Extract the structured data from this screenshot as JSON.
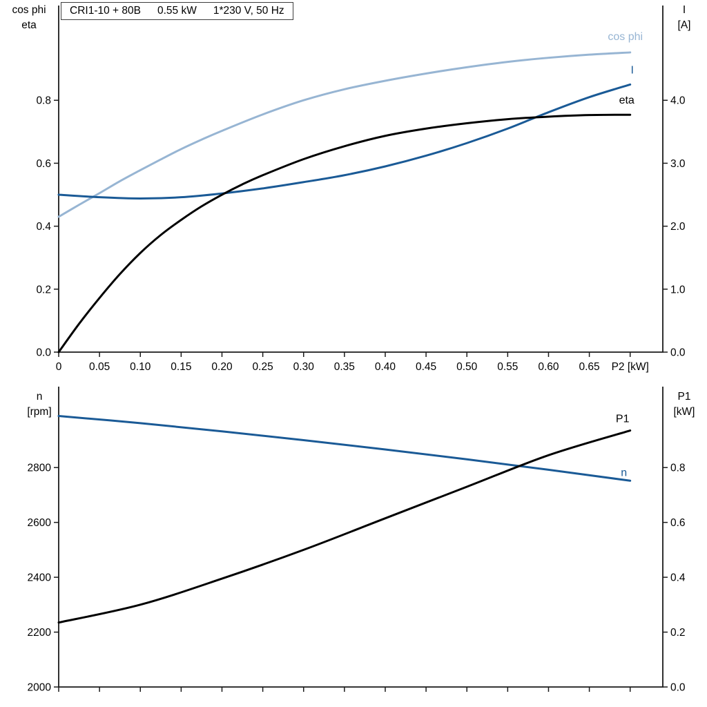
{
  "title": {
    "model": "CRI1-10 + 80B",
    "power": "0.55 kW",
    "supply": "1*230 V, 50 Hz"
  },
  "axis_corner_labels": {
    "top_left": [
      "cos phi",
      "eta"
    ],
    "top_right": [
      "I",
      "[A]"
    ],
    "bottom_left": [
      "n",
      "[rpm]"
    ],
    "bottom_right": [
      "P1",
      "[kW]"
    ]
  },
  "chart_data": [
    {
      "type": "line",
      "chart_name": "cosphi-eta-current-chart",
      "title": "CRI1-10 + 80B  0.55 kW  1*230 V, 50 Hz",
      "xlabel": "P2 [kW]",
      "ylabel_left": "cos phi / eta",
      "ylabel_right": "I [A]",
      "grid": false,
      "xlim": [
        0,
        0.74
      ],
      "ylim_left": [
        0,
        1.101
      ],
      "ylim_right": [
        0,
        5.505
      ],
      "x_ticks": {
        "values": [
          0,
          0.05,
          0.1,
          0.15,
          0.2,
          0.25,
          0.3,
          0.35,
          0.4,
          0.45,
          0.5,
          0.55,
          0.6,
          0.65,
          0.7
        ],
        "labels": [
          "0",
          "0.05",
          "0.10",
          "0.15",
          "0.20",
          "0.25",
          "0.30",
          "0.35",
          "0.40",
          "0.45",
          "0.50",
          "0.55",
          "0.60",
          "0.65",
          ""
        ]
      },
      "x_end_label": {
        "text": "P2 [kW]",
        "at": 0.7
      },
      "left_ticks": {
        "values": [
          0,
          0.2,
          0.4,
          0.6,
          0.8
        ],
        "labels": [
          "0.0",
          "0.2",
          "0.4",
          "0.6",
          "0.8"
        ]
      },
      "right_ticks": {
        "values": [
          0,
          1.0,
          2.0,
          3.0,
          4.0
        ],
        "labels": [
          "0.0",
          "1.0",
          "2.0",
          "3.0",
          "4.0"
        ]
      },
      "series": [
        {
          "name": "cos phi",
          "axis": "left",
          "color": "#97b5d3",
          "width": 3,
          "label_offset": [
            -7,
            -18
          ],
          "points": [
            [
              0,
              0.43
            ],
            [
              0.025,
              0.468
            ],
            [
              0.05,
              0.505
            ],
            [
              0.075,
              0.543
            ],
            [
              0.1,
              0.578
            ],
            [
              0.125,
              0.612
            ],
            [
              0.15,
              0.645
            ],
            [
              0.175,
              0.675
            ],
            [
              0.2,
              0.703
            ],
            [
              0.25,
              0.755
            ],
            [
              0.3,
              0.8
            ],
            [
              0.35,
              0.835
            ],
            [
              0.4,
              0.862
            ],
            [
              0.45,
              0.885
            ],
            [
              0.5,
              0.905
            ],
            [
              0.55,
              0.922
            ],
            [
              0.6,
              0.935
            ],
            [
              0.65,
              0.945
            ],
            [
              0.7,
              0.952
            ]
          ]
        },
        {
          "name": "I",
          "axis": "right",
          "color": "#1a5a96",
          "width": 3,
          "label_offset": [
            3,
            -16
          ],
          "points": [
            [
              0,
              2.5
            ],
            [
              0.05,
              2.46
            ],
            [
              0.1,
              2.44
            ],
            [
              0.15,
              2.46
            ],
            [
              0.2,
              2.52
            ],
            [
              0.25,
              2.6
            ],
            [
              0.3,
              2.7
            ],
            [
              0.35,
              2.81
            ],
            [
              0.4,
              2.95
            ],
            [
              0.45,
              3.12
            ],
            [
              0.5,
              3.32
            ],
            [
              0.55,
              3.55
            ],
            [
              0.6,
              3.81
            ],
            [
              0.65,
              4.05
            ],
            [
              0.7,
              4.25
            ]
          ]
        },
        {
          "name": "eta",
          "axis": "left",
          "color": "#000000",
          "width": 3,
          "label_offset": [
            -5,
            -16
          ],
          "points": [
            [
              0,
              0
            ],
            [
              0.025,
              0.09
            ],
            [
              0.05,
              0.172
            ],
            [
              0.075,
              0.248
            ],
            [
              0.1,
              0.315
            ],
            [
              0.125,
              0.372
            ],
            [
              0.15,
              0.42
            ],
            [
              0.175,
              0.463
            ],
            [
              0.2,
              0.5
            ],
            [
              0.225,
              0.533
            ],
            [
              0.25,
              0.562
            ],
            [
              0.3,
              0.613
            ],
            [
              0.35,
              0.654
            ],
            [
              0.4,
              0.687
            ],
            [
              0.45,
              0.71
            ],
            [
              0.5,
              0.727
            ],
            [
              0.55,
              0.74
            ],
            [
              0.6,
              0.748
            ],
            [
              0.65,
              0.753
            ],
            [
              0.7,
              0.754
            ]
          ]
        }
      ]
    },
    {
      "type": "line",
      "chart_name": "speed-p1-chart",
      "title": "",
      "xlabel": "",
      "ylabel_left": "n [rpm]",
      "ylabel_right": "P1 [kW]",
      "grid": false,
      "xlim": [
        0,
        0.74
      ],
      "ylim_left": [
        2000,
        3095
      ],
      "ylim_right": [
        0,
        1.095
      ],
      "x_ticks": {
        "values": [
          0,
          0.05,
          0.1,
          0.15,
          0.2,
          0.25,
          0.3,
          0.35,
          0.4,
          0.45,
          0.5,
          0.55,
          0.6,
          0.65,
          0.7
        ],
        "labels": [
          "",
          "",
          "",
          "",
          "",
          "",
          "",
          "",
          "",
          "",
          "",
          "",
          "",
          "",
          ""
        ]
      },
      "left_ticks": {
        "values": [
          2000,
          2200,
          2400,
          2600,
          2800
        ],
        "labels": [
          "2000",
          "2200",
          "2400",
          "2600",
          "2800"
        ]
      },
      "right_ticks": {
        "values": [
          0,
          0.2,
          0.4,
          0.6,
          0.8
        ],
        "labels": [
          "0.0",
          "0.2",
          "0.4",
          "0.6",
          "0.8"
        ]
      },
      "series": [
        {
          "name": "n",
          "axis": "left",
          "color": "#1a5a96",
          "width": 3,
          "label_offset": [
            -9,
            -7
          ],
          "points": [
            [
              0,
              2988
            ],
            [
              0.1,
              2962
            ],
            [
              0.2,
              2932
            ],
            [
              0.3,
              2900
            ],
            [
              0.4,
              2866
            ],
            [
              0.5,
              2830
            ],
            [
              0.6,
              2792
            ],
            [
              0.7,
              2752
            ]
          ]
        },
        {
          "name": "P1",
          "axis": "right",
          "color": "#000000",
          "width": 3,
          "label_offset": [
            -11,
            -12
          ],
          "points": [
            [
              0,
              0.235
            ],
            [
              0.1,
              0.3
            ],
            [
              0.2,
              0.395
            ],
            [
              0.3,
              0.5
            ],
            [
              0.4,
              0.615
            ],
            [
              0.5,
              0.73
            ],
            [
              0.6,
              0.845
            ],
            [
              0.7,
              0.935
            ]
          ]
        }
      ]
    }
  ]
}
